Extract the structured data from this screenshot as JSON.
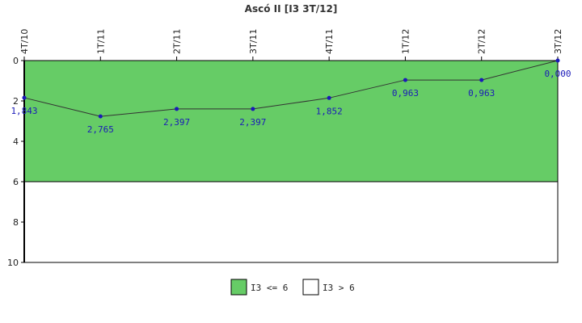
{
  "chart_data": {
    "type": "line",
    "title": "Ascó II [I3 3T/12]",
    "categories": [
      "4T/10",
      "1T/11",
      "2T/11",
      "3T/11",
      "4T/11",
      "1T/12",
      "2T/12",
      "3T/12"
    ],
    "series": [
      {
        "values": [
          1.843,
          2.765,
          2.397,
          2.397,
          1.852,
          0.963,
          0.963,
          0.0
        ],
        "labels": [
          "1,843",
          "2,765",
          "2,397",
          "2,397",
          "1,852",
          "0,963",
          "0,963",
          "0,000"
        ]
      }
    ],
    "ylim": [
      0,
      10
    ],
    "y_inverted": true,
    "yticks": [
      0,
      2,
      4,
      6,
      8,
      10
    ],
    "ytick_labels": [
      "0",
      "2",
      "4",
      "6",
      "8",
      "10"
    ],
    "threshold": 6,
    "grid": false,
    "bands": [
      {
        "name": "I3 <= 6",
        "from": 0,
        "to": 6,
        "color": "#66cc66"
      },
      {
        "name": "I3 > 6",
        "from": 6,
        "to": 10,
        "color": "#ffffff"
      }
    ],
    "legend_position": "bottom",
    "colors": {
      "line": "#333333",
      "marker": "#1a1ab8",
      "label": "#1a1ab8",
      "axis": "#000000"
    }
  }
}
